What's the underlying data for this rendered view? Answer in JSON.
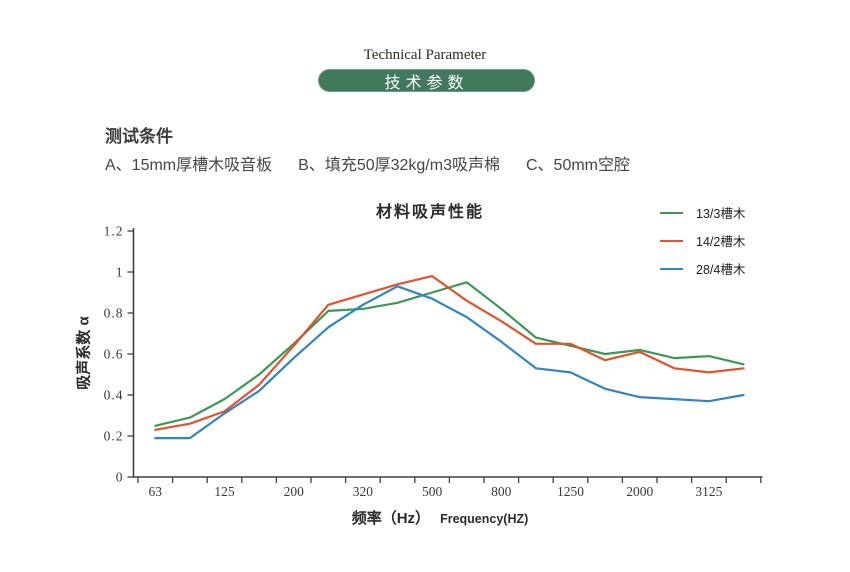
{
  "page": {
    "header_en": "Technical Parameter",
    "header_zh": "技术参数",
    "accent_color": "#41795c"
  },
  "conditions": {
    "title": "测试条件",
    "items": [
      "A、15mm厚槽木吸音板",
      "B、填充50厚32kg/m3吸声棉",
      "C、50mm空腔"
    ]
  },
  "chart_data": {
    "type": "line",
    "title": "材料吸声性能",
    "ylabel": "吸声系数 α",
    "xlabel_zh": "频率（Hz）",
    "xlabel_en": "Frequency(HZ)",
    "grid": false,
    "legend_position": "top-right",
    "ylim": [
      0,
      1.2
    ],
    "y_tick_labels": [
      "0",
      "0.2",
      "0.4",
      "0.6",
      "0.8",
      "1",
      "1.2"
    ],
    "x_tick_labels": [
      "63",
      "125",
      "200",
      "320",
      "500",
      "800",
      "1250",
      "2000",
      "3125"
    ],
    "x": [
      63,
      80,
      125,
      160,
      200,
      250,
      320,
      400,
      500,
      630,
      800,
      1000,
      1250,
      1600,
      2000,
      2500,
      3125,
      4000
    ],
    "series": [
      {
        "name": "13/3槽木",
        "color": "#3a9a55",
        "values": [
          0.25,
          0.29,
          0.38,
          0.5,
          0.65,
          0.81,
          0.82,
          0.85,
          0.9,
          0.95,
          0.82,
          0.68,
          0.64,
          0.6,
          0.62,
          0.58,
          0.59,
          0.55
        ]
      },
      {
        "name": "14/2槽木",
        "color": "#e5512b",
        "values": [
          0.23,
          0.26,
          0.32,
          0.45,
          0.64,
          0.84,
          0.89,
          0.94,
          0.98,
          0.86,
          0.76,
          0.65,
          0.65,
          0.57,
          0.61,
          0.53,
          0.51,
          0.53
        ]
      },
      {
        "name": "28/4槽木",
        "color": "#2e86c5",
        "values": [
          0.19,
          0.19,
          0.31,
          0.42,
          0.58,
          0.73,
          0.84,
          0.93,
          0.87,
          0.78,
          0.66,
          0.53,
          0.51,
          0.43,
          0.39,
          0.38,
          0.37,
          0.4
        ]
      }
    ]
  }
}
